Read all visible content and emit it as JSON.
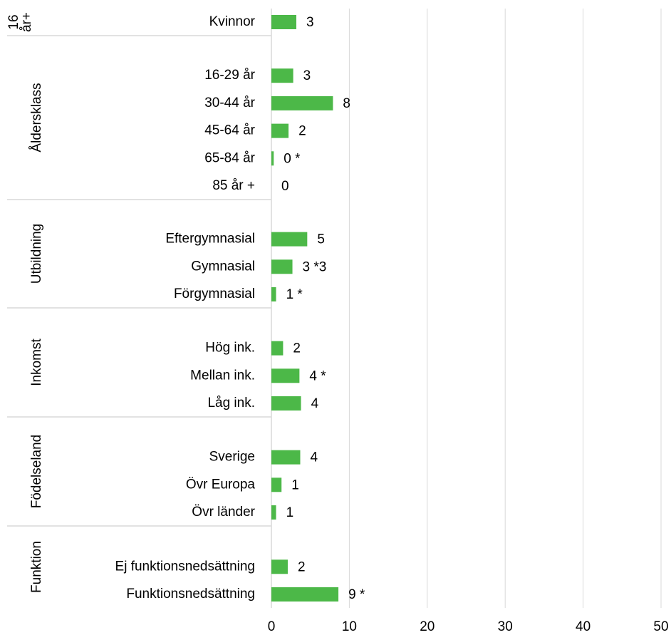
{
  "chart_data": {
    "type": "bar",
    "orientation": "horizontal",
    "color": "#4cb848",
    "xlim": [
      0,
      50
    ],
    "xticks": [
      0,
      10,
      20,
      30,
      40,
      50
    ],
    "grid": true,
    "groups": [
      {
        "label": "16 år+",
        "categories": [
          "Kvinnor"
        ],
        "values": [
          3.2
        ],
        "value_labels": [
          "3"
        ]
      },
      {
        "label": "Åldersklass",
        "categories": [
          "16-29 år",
          "30-44 år",
          "45-64 år",
          "65-84 år",
          "85 år +"
        ],
        "values": [
          2.8,
          7.9,
          2.2,
          0.3,
          0
        ],
        "value_labels": [
          "3",
          "8",
          "2",
          "0 *",
          "0"
        ]
      },
      {
        "label": "Utbildning",
        "categories": [
          "Eftergymnasial",
          "Gymnasial",
          "Förgymnasial"
        ],
        "values": [
          4.6,
          2.7,
          0.6
        ],
        "value_labels": [
          "5",
          "3 *3",
          "1 *"
        ]
      },
      {
        "label": "Inkomst",
        "categories": [
          "Hög ink.",
          "Mellan ink.",
          "Låg ink."
        ],
        "values": [
          1.5,
          3.6,
          3.8
        ],
        "value_labels": [
          "2",
          "4 *",
          "4"
        ]
      },
      {
        "label": "Födelseland",
        "categories": [
          "Sverige",
          "Övr Europa",
          "Övr länder"
        ],
        "values": [
          3.7,
          1.3,
          0.6
        ],
        "value_labels": [
          "4",
          "1",
          "1"
        ]
      },
      {
        "label": "Funktion",
        "categories": [
          "Ej funktionsnedsättning",
          "Funktionsnedsättning"
        ],
        "values": [
          2.1,
          8.6
        ],
        "value_labels": [
          "2",
          "9 *"
        ]
      }
    ]
  }
}
